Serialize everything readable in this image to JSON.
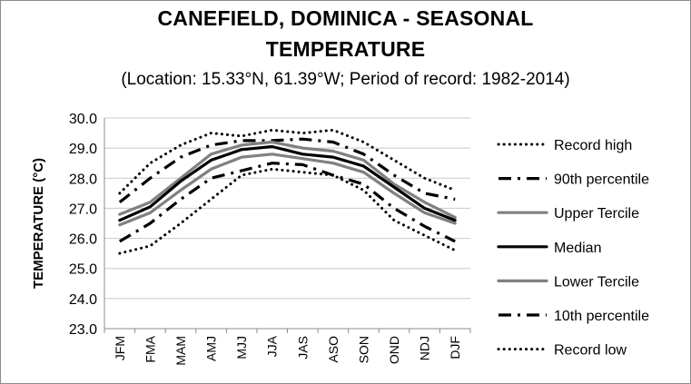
{
  "chart_data": {
    "type": "line",
    "title_line1": "CANEFIELD, DOMINICA - SEASONAL",
    "title_line2": "TEMPERATURE",
    "subtitle": "(Location: 15.33°N, 61.39°W; Period of record: 1982-2014)",
    "ylabel": "TEMPERATURE (°C)",
    "xlabel": "",
    "ylim": [
      23.0,
      30.0
    ],
    "yticks": [
      "23.0",
      "24.0",
      "25.0",
      "26.0",
      "27.0",
      "28.0",
      "29.0",
      "30.0"
    ],
    "grid": true,
    "legend_position": "right",
    "categories": [
      "JFM",
      "FMA",
      "MAM",
      "AMJ",
      "MJJ",
      "JJA",
      "JAS",
      "ASO",
      "SON",
      "OND",
      "NDJ",
      "DJF"
    ],
    "series": [
      {
        "name": "Record high",
        "style": "dotted",
        "color": "#000000",
        "values": [
          27.5,
          28.5,
          29.1,
          29.5,
          29.4,
          29.6,
          29.5,
          29.6,
          29.2,
          28.6,
          28.0,
          27.6
        ]
      },
      {
        "name": "90th percentile",
        "style": "dashdot",
        "color": "#000000",
        "values": [
          27.2,
          28.0,
          28.7,
          29.1,
          29.25,
          29.25,
          29.3,
          29.2,
          28.8,
          28.1,
          27.5,
          27.3
        ]
      },
      {
        "name": "Upper Tercile",
        "style": "solid",
        "color": "#808080",
        "values": [
          26.8,
          27.2,
          28.0,
          28.8,
          29.1,
          29.2,
          29.0,
          28.9,
          28.6,
          27.8,
          27.2,
          26.7
        ]
      },
      {
        "name": "Median",
        "style": "solid",
        "color": "#000000",
        "values": [
          26.6,
          27.05,
          27.9,
          28.6,
          28.95,
          29.05,
          28.8,
          28.7,
          28.4,
          27.7,
          27.0,
          26.6
        ]
      },
      {
        "name": "Lower Tercile",
        "style": "solid",
        "color": "#808080",
        "values": [
          26.45,
          26.85,
          27.6,
          28.3,
          28.7,
          28.8,
          28.65,
          28.5,
          28.2,
          27.5,
          26.85,
          26.5
        ]
      },
      {
        "name": "10th percentile",
        "style": "dashdot",
        "color": "#000000",
        "values": [
          25.9,
          26.5,
          27.3,
          28.0,
          28.25,
          28.5,
          28.45,
          28.1,
          27.8,
          27.0,
          26.4,
          25.9
        ]
      },
      {
        "name": "Record low",
        "style": "dotted",
        "color": "#000000",
        "values": [
          25.5,
          25.75,
          26.5,
          27.3,
          28.1,
          28.3,
          28.2,
          28.1,
          27.6,
          26.6,
          26.1,
          25.6
        ]
      }
    ]
  }
}
